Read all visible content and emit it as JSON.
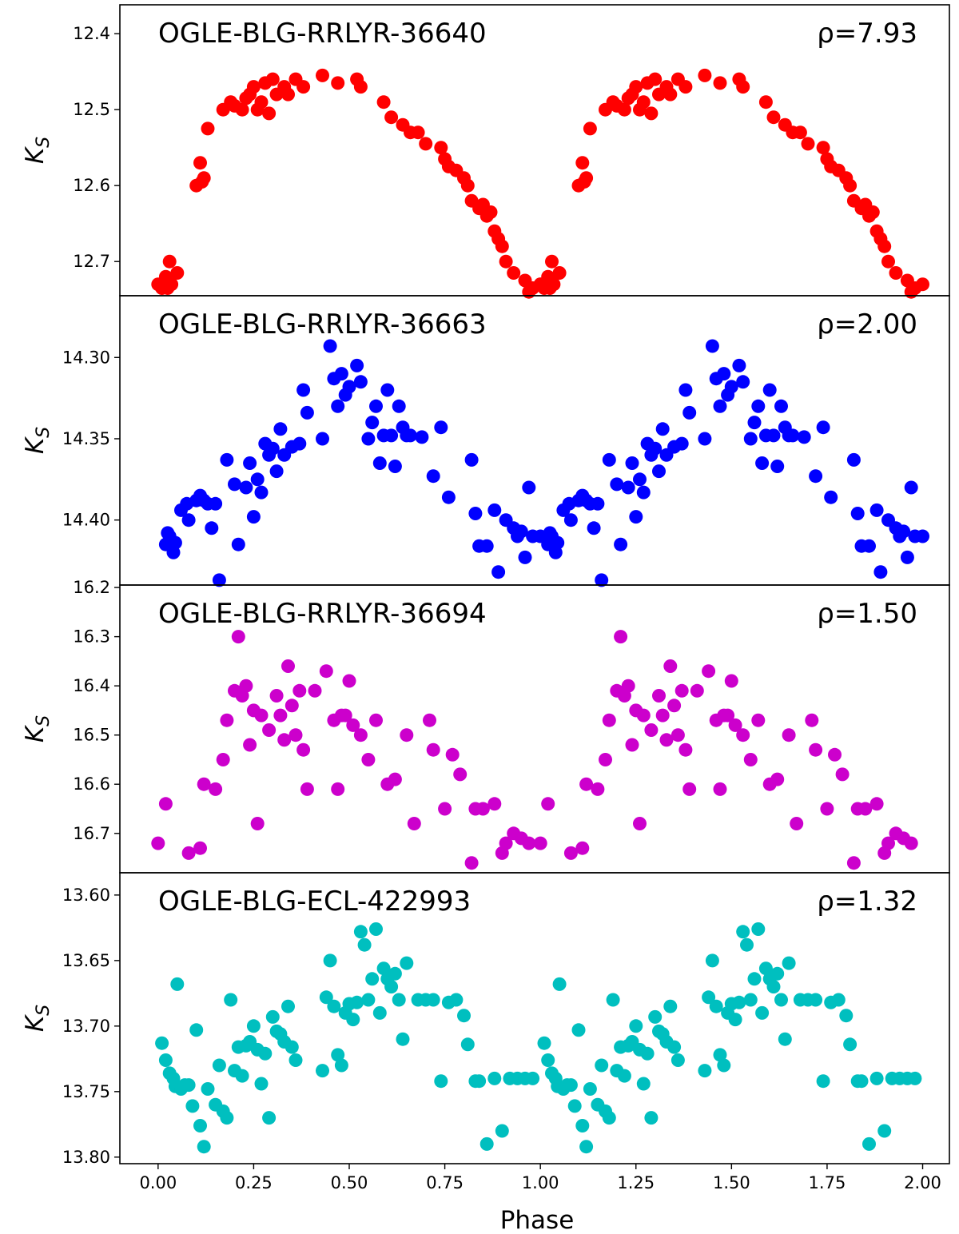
{
  "figure": {
    "xlabel": "Phase",
    "x_ticks": [
      0.0,
      0.25,
      0.5,
      0.75,
      1.0,
      1.25,
      1.5,
      1.75,
      2.0
    ],
    "x_tick_labels": [
      "0.00",
      "0.25",
      "0.50",
      "0.75",
      "1.00",
      "1.25",
      "1.50",
      "1.75",
      "2.00"
    ],
    "xlim": [
      -0.1,
      2.07
    ]
  },
  "chart_data": [
    {
      "type": "scatter",
      "title": "OGLE-BLG-RRLYR-36640",
      "annotation": "ρ=7.93",
      "ylabel": "K",
      "ylabel_sub": "S",
      "color": "#ff0000",
      "ylim": [
        12.745,
        12.362
      ],
      "y_inverted": true,
      "y_ticks": [
        12.4,
        12.5,
        12.6,
        12.7
      ],
      "y_tick_labels": [
        "12.4",
        "12.5",
        "12.6",
        "12.7"
      ],
      "period_repeat": 1.0,
      "phase": [
        0.0,
        0.01,
        0.02,
        0.025,
        0.03,
        0.035,
        0.05,
        0.1,
        0.11,
        0.115,
        0.12,
        0.13,
        0.17,
        0.19,
        0.2,
        0.22,
        0.23,
        0.24,
        0.25,
        0.26,
        0.27,
        0.28,
        0.29,
        0.3,
        0.31,
        0.33,
        0.34,
        0.36,
        0.38,
        0.43,
        0.47,
        0.52,
        0.53,
        0.59,
        0.61,
        0.64,
        0.66,
        0.68,
        0.7,
        0.74,
        0.75,
        0.76,
        0.78,
        0.8,
        0.81,
        0.82,
        0.84,
        0.85,
        0.86,
        0.87,
        0.88,
        0.89,
        0.9,
        0.91,
        0.93,
        0.96,
        0.97,
        0.98,
        1.0
      ],
      "y": [
        12.73,
        12.735,
        12.72,
        12.735,
        12.7,
        12.73,
        12.715,
        12.6,
        12.57,
        12.595,
        12.59,
        12.525,
        12.5,
        12.49,
        12.495,
        12.5,
        12.485,
        12.48,
        12.47,
        12.5,
        12.49,
        12.465,
        12.505,
        12.46,
        12.48,
        12.47,
        12.48,
        12.46,
        12.47,
        12.455,
        12.465,
        12.46,
        12.47,
        12.49,
        12.51,
        12.52,
        12.53,
        12.53,
        12.545,
        12.55,
        12.565,
        12.575,
        12.58,
        12.59,
        12.6,
        12.62,
        12.63,
        12.625,
        12.64,
        12.635,
        12.66,
        12.67,
        12.68,
        12.7,
        12.715,
        12.725,
        12.74,
        12.735,
        12.73
      ]
    },
    {
      "type": "scatter",
      "title": "OGLE-BLG-RRLYR-36663",
      "annotation": "ρ=2.00",
      "ylabel": "K",
      "ylabel_sub": "S",
      "color": "#0000ff",
      "ylim": [
        14.44,
        14.262
      ],
      "y_inverted": true,
      "y_ticks": [
        14.3,
        14.35,
        14.4
      ],
      "y_tick_labels": [
        "14.30",
        "14.35",
        "14.40"
      ],
      "period_repeat": 1.0,
      "phase": [
        0.02,
        0.025,
        0.03,
        0.04,
        0.045,
        0.06,
        0.075,
        0.08,
        0.1,
        0.11,
        0.12,
        0.13,
        0.14,
        0.15,
        0.16,
        0.18,
        0.2,
        0.21,
        0.23,
        0.24,
        0.25,
        0.26,
        0.27,
        0.28,
        0.29,
        0.3,
        0.31,
        0.32,
        0.33,
        0.35,
        0.37,
        0.38,
        0.39,
        0.43,
        0.45,
        0.46,
        0.47,
        0.48,
        0.49,
        0.5,
        0.52,
        0.53,
        0.55,
        0.56,
        0.57,
        0.58,
        0.59,
        0.6,
        0.61,
        0.62,
        0.63,
        0.64,
        0.65,
        0.66,
        0.69,
        0.72,
        0.74,
        0.76,
        0.82,
        0.83,
        0.84,
        0.86,
        0.88,
        0.89,
        0.91,
        0.93,
        0.94,
        0.95,
        0.96,
        0.97,
        0.98,
        1.0
      ],
      "y": [
        14.415,
        14.408,
        14.41,
        14.42,
        14.414,
        14.394,
        14.39,
        14.4,
        14.388,
        14.385,
        14.388,
        14.39,
        14.405,
        14.39,
        14.437,
        14.363,
        14.378,
        14.415,
        14.38,
        14.365,
        14.398,
        14.375,
        14.383,
        14.353,
        14.36,
        14.356,
        14.37,
        14.344,
        14.36,
        14.355,
        14.353,
        14.32,
        14.334,
        14.35,
        14.293,
        14.313,
        14.33,
        14.31,
        14.323,
        14.318,
        14.305,
        14.315,
        14.35,
        14.34,
        14.33,
        14.365,
        14.348,
        14.32,
        14.348,
        14.367,
        14.33,
        14.343,
        14.348,
        14.348,
        14.349,
        14.373,
        14.343,
        14.386,
        14.363,
        14.396,
        14.416,
        14.416,
        14.394,
        14.432,
        14.4,
        14.405,
        14.41,
        14.407,
        14.423,
        14.38,
        14.41,
        14.41
      ]
    },
    {
      "type": "scatter",
      "title": "OGLE-BLG-RRLYR-36694",
      "annotation": "ρ=1.50",
      "ylabel": "K",
      "ylabel_sub": "S",
      "color": "#cc00cc",
      "ylim": [
        16.78,
        16.195
      ],
      "y_inverted": true,
      "y_ticks": [
        16.2,
        16.3,
        16.4,
        16.5,
        16.6,
        16.7
      ],
      "y_tick_labels": [
        "16.2",
        "16.3",
        "16.4",
        "16.5",
        "16.6",
        "16.7"
      ],
      "period_repeat": 1.0,
      "phase": [
        0.0,
        0.02,
        0.08,
        0.11,
        0.12,
        0.15,
        0.17,
        0.18,
        0.2,
        0.21,
        0.22,
        0.23,
        0.24,
        0.25,
        0.26,
        0.27,
        0.29,
        0.31,
        0.32,
        0.33,
        0.34,
        0.35,
        0.36,
        0.37,
        0.38,
        0.39,
        0.41,
        0.44,
        0.46,
        0.47,
        0.48,
        0.49,
        0.5,
        0.51,
        0.53,
        0.55,
        0.57,
        0.6,
        0.62,
        0.65,
        0.67,
        0.71,
        0.72,
        0.75,
        0.77,
        0.79,
        0.82,
        0.83,
        0.85,
        0.88,
        0.9,
        0.91,
        0.93,
        0.95,
        0.97
      ],
      "y": [
        16.72,
        16.64,
        16.74,
        16.73,
        16.6,
        16.61,
        16.55,
        16.47,
        16.41,
        16.3,
        16.42,
        16.4,
        16.52,
        16.45,
        16.68,
        16.46,
        16.49,
        16.42,
        16.46,
        16.51,
        16.36,
        16.44,
        16.5,
        16.41,
        16.53,
        16.61,
        16.41,
        16.37,
        16.47,
        16.61,
        16.46,
        16.46,
        16.39,
        16.48,
        16.5,
        16.55,
        16.47,
        16.6,
        16.59,
        16.5,
        16.68,
        16.47,
        16.53,
        16.65,
        16.54,
        16.58,
        16.76,
        16.65,
        16.65,
        16.64,
        16.74,
        16.72,
        16.7,
        16.71,
        16.72
      ]
    },
    {
      "type": "scatter",
      "title": "OGLE-BLG-ECL-422993",
      "annotation": "ρ=1.32",
      "ylabel": "K",
      "ylabel_sub": "S",
      "color": "#00bfbf",
      "ylim": [
        13.805,
        13.583
      ],
      "y_inverted": true,
      "y_ticks": [
        13.6,
        13.65,
        13.7,
        13.75,
        13.8
      ],
      "y_tick_labels": [
        "13.60",
        "13.65",
        "13.70",
        "13.75",
        "13.80"
      ],
      "period_repeat": 1.0,
      "phase": [
        0.01,
        0.02,
        0.03,
        0.04,
        0.045,
        0.05,
        0.06,
        0.07,
        0.08,
        0.09,
        0.1,
        0.11,
        0.12,
        0.13,
        0.15,
        0.16,
        0.17,
        0.18,
        0.19,
        0.2,
        0.21,
        0.22,
        0.23,
        0.24,
        0.25,
        0.26,
        0.27,
        0.28,
        0.29,
        0.3,
        0.31,
        0.32,
        0.33,
        0.34,
        0.35,
        0.36,
        0.43,
        0.44,
        0.45,
        0.46,
        0.47,
        0.48,
        0.49,
        0.5,
        0.51,
        0.52,
        0.53,
        0.54,
        0.55,
        0.56,
        0.57,
        0.58,
        0.59,
        0.6,
        0.61,
        0.62,
        0.63,
        0.64,
        0.65,
        0.68,
        0.7,
        0.72,
        0.74,
        0.76,
        0.78,
        0.8,
        0.81,
        0.83,
        0.84,
        0.86,
        0.88,
        0.9,
        0.92,
        0.94,
        0.96,
        0.98
      ],
      "y": [
        13.713,
        13.726,
        13.736,
        13.74,
        13.746,
        13.668,
        13.748,
        13.745,
        13.745,
        13.761,
        13.703,
        13.776,
        13.792,
        13.748,
        13.76,
        13.73,
        13.765,
        13.77,
        13.68,
        13.734,
        13.716,
        13.738,
        13.715,
        13.712,
        13.7,
        13.718,
        13.744,
        13.721,
        13.77,
        13.693,
        13.704,
        13.706,
        13.712,
        13.685,
        13.716,
        13.726,
        13.734,
        13.678,
        13.65,
        13.685,
        13.722,
        13.73,
        13.69,
        13.683,
        13.695,
        13.682,
        13.628,
        13.638,
        13.68,
        13.664,
        13.626,
        13.69,
        13.656,
        13.664,
        13.67,
        13.66,
        13.68,
        13.71,
        13.652,
        13.68,
        13.68,
        13.68,
        13.742,
        13.682,
        13.68,
        13.692,
        13.714,
        13.742,
        13.742,
        13.79,
        13.74,
        13.78,
        13.74,
        13.74,
        13.74,
        13.74
      ]
    }
  ]
}
